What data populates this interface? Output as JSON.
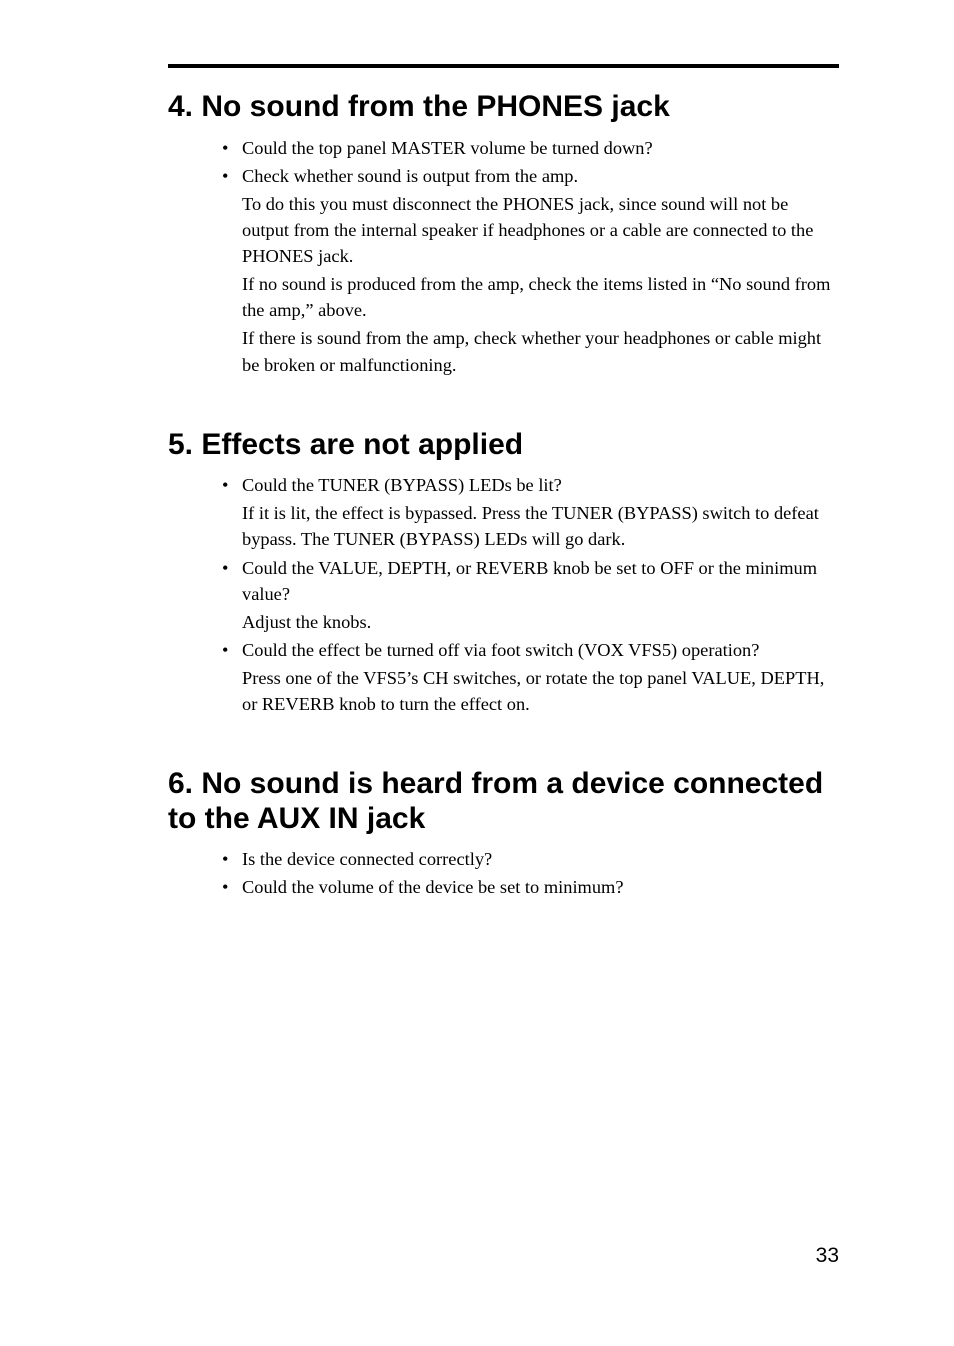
{
  "page_number": "33",
  "sections": [
    {
      "title": "4. No sound from the PHONES jack",
      "items": [
        {
          "bullet": "Could the top panel MASTER volume be turned down?"
        },
        {
          "bullet": "Check whether sound is output from the amp."
        },
        {
          "para": "To do this you must disconnect the PHONES jack, since sound will not be output from the internal speaker if headphones or a cable are connected to the PHONES jack."
        },
        {
          "para": "If no sound is produced from the amp, check the items listed in “No sound from the amp,” above."
        },
        {
          "para": "If there is sound from the amp, check whether your headphones or cable might be broken or malfunctioning."
        }
      ]
    },
    {
      "title": "5. Effects are not applied",
      "items": [
        {
          "bullet": "Could the TUNER (BYPASS) LEDs be lit?"
        },
        {
          "para": "If it is lit, the effect is bypassed. Press the TUNER (BYPASS) switch to defeat bypass. The TUNER (BYPASS) LEDs will go dark."
        },
        {
          "bullet": "Could the VALUE, DEPTH, or REVERB knob be set to OFF or the minimum value?"
        },
        {
          "para": "Adjust the knobs."
        },
        {
          "bullet": "Could the effect be turned off via foot switch (VOX VFS5) operation?"
        },
        {
          "para": "Press one of the VFS5’s CH switches, or rotate the top panel VALUE, DEPTH, or REVERB knob to turn the effect on."
        }
      ]
    },
    {
      "title": "6. No sound is heard from a device connected to the AUX IN jack",
      "items": [
        {
          "bullet": "Is the device connected correctly?"
        },
        {
          "bullet": "Could the volume of the device be set to minimum?"
        }
      ]
    }
  ]
}
